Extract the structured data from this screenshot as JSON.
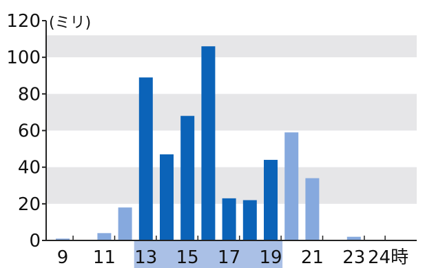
{
  "chart_data": {
    "type": "bar",
    "unit_label": "(ミリ)",
    "ylim": [
      0,
      120
    ],
    "y_ticks": [
      "0",
      "20",
      "40",
      "60",
      "80",
      "100",
      "120"
    ],
    "x_tick_labels": [
      {
        "hour": 9,
        "label": "9"
      },
      {
        "hour": 11,
        "label": "11"
      },
      {
        "hour": 13,
        "label": "13"
      },
      {
        "hour": 15,
        "label": "15"
      },
      {
        "hour": 17,
        "label": "17"
      },
      {
        "hour": 19,
        "label": "19"
      },
      {
        "hour": 21,
        "label": "21"
      },
      {
        "hour": 23,
        "label": "23"
      },
      {
        "hour": 24,
        "label": "24時"
      }
    ],
    "hours": [
      9,
      10,
      11,
      12,
      13,
      14,
      15,
      16,
      17,
      18,
      19,
      20,
      21,
      22,
      23,
      24
    ],
    "values": [
      1,
      0,
      4,
      18,
      89,
      47,
      68,
      106,
      23,
      22,
      44,
      59,
      34,
      0,
      2,
      0
    ],
    "highlight_hours": [
      13,
      14,
      15,
      16,
      17,
      18,
      19
    ],
    "grid": "alternating horizontal bands",
    "colors": {
      "highlight_bar": "#0b63b8",
      "normal_bar": "#86a9de",
      "band": "#e6e6e8",
      "highlight_axis_band": "#aac0e6",
      "axis": "#222222"
    }
  }
}
